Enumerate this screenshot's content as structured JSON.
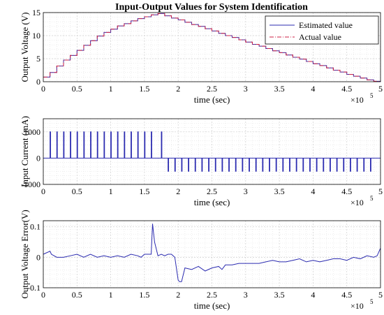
{
  "figure": {
    "title": "Input-Output Values for System Identification"
  },
  "chart_data": [
    {
      "type": "line",
      "ylabel": "Output Voltage (V)",
      "xlabel": "time (sec)",
      "x_exponent": "×10",
      "x_exponent_power": "5",
      "xlim": [
        0,
        5
      ],
      "ylim": [
        0,
        15
      ],
      "xticks": [
        "0",
        "0.5",
        "1",
        "1.5",
        "2",
        "2.5",
        "3",
        "3.5",
        "4",
        "4.5",
        "5"
      ],
      "yticks": [
        "0",
        "5",
        "10",
        "15"
      ],
      "grid": true,
      "legend_position": "top-right",
      "series": [
        {
          "name": "Estimated value",
          "color": "#2b2bb0",
          "style": "solid",
          "x": [
            0,
            0.1,
            0.2,
            0.3,
            0.4,
            0.5,
            0.6,
            0.7,
            0.8,
            0.9,
            1.0,
            1.1,
            1.2,
            1.3,
            1.4,
            1.5,
            1.6,
            1.7,
            1.8,
            1.9,
            2.0,
            2.1,
            2.2,
            2.3,
            2.4,
            2.5,
            2.6,
            2.7,
            2.8,
            2.9,
            3.0,
            3.1,
            3.2,
            3.3,
            3.4,
            3.5,
            3.6,
            3.7,
            3.8,
            3.9,
            4.0,
            4.1,
            4.2,
            4.3,
            4.4,
            4.5,
            4.6,
            4.7,
            4.8,
            4.9,
            5.0
          ],
          "y": [
            1.0,
            2.0,
            3.4,
            4.7,
            5.7,
            6.8,
            7.9,
            8.9,
            9.9,
            10.7,
            11.4,
            12.1,
            12.6,
            13.2,
            13.7,
            14.1,
            14.5,
            14.8,
            14.3,
            13.8,
            13.4,
            12.9,
            12.4,
            12.0,
            11.5,
            11.0,
            10.5,
            10.0,
            9.6,
            9.1,
            8.6,
            8.1,
            7.7,
            7.2,
            6.7,
            6.3,
            5.8,
            5.3,
            4.9,
            4.4,
            3.9,
            3.5,
            3.0,
            2.5,
            2.1,
            1.6,
            1.2,
            0.8,
            0.4,
            0.1,
            0.0
          ]
        },
        {
          "name": "Actual value",
          "color": "#cc2244",
          "style": "dashdot",
          "x": [
            0,
            0.1,
            0.2,
            0.3,
            0.4,
            0.5,
            0.6,
            0.7,
            0.8,
            0.9,
            1.0,
            1.1,
            1.2,
            1.3,
            1.4,
            1.5,
            1.6,
            1.7,
            1.8,
            1.9,
            2.0,
            2.1,
            2.2,
            2.3,
            2.4,
            2.5,
            2.6,
            2.7,
            2.8,
            2.9,
            3.0,
            3.1,
            3.2,
            3.3,
            3.4,
            3.5,
            3.6,
            3.7,
            3.8,
            3.9,
            4.0,
            4.1,
            4.2,
            4.3,
            4.4,
            4.5,
            4.6,
            4.7,
            4.8,
            4.9,
            5.0
          ],
          "y": [
            1.0,
            2.0,
            3.4,
            4.7,
            5.7,
            6.8,
            7.9,
            8.9,
            9.9,
            10.7,
            11.4,
            12.1,
            12.6,
            13.2,
            13.7,
            14.1,
            14.5,
            14.8,
            14.3,
            13.8,
            13.4,
            12.9,
            12.4,
            12.0,
            11.5,
            11.0,
            10.5,
            10.0,
            9.6,
            9.1,
            8.6,
            8.1,
            7.7,
            7.2,
            6.7,
            6.3,
            5.8,
            5.3,
            4.9,
            4.4,
            3.9,
            3.5,
            3.0,
            2.5,
            2.1,
            1.6,
            1.2,
            0.8,
            0.4,
            0.1,
            0.0
          ]
        }
      ]
    },
    {
      "type": "line",
      "ylabel": "Input Current (mA)",
      "xlabel": "time (sec)",
      "x_exponent": "×10",
      "x_exponent_power": "5",
      "xlim": [
        0,
        5
      ],
      "ylim": [
        -1000,
        1500
      ],
      "xticks": [
        "0",
        "0.5",
        "1",
        "1.5",
        "2",
        "2.5",
        "3",
        "3.5",
        "4",
        "4.5",
        "5"
      ],
      "yticks": [
        "-1000",
        "0",
        "1000"
      ],
      "grid": true,
      "series": [
        {
          "color": "#2b2bb0",
          "baseline": 0,
          "pulses": [
            {
              "x": 0.1,
              "y": 1000
            },
            {
              "x": 0.2,
              "y": 1000
            },
            {
              "x": 0.3,
              "y": 1000
            },
            {
              "x": 0.4,
              "y": 1000
            },
            {
              "x": 0.5,
              "y": 1000
            },
            {
              "x": 0.6,
              "y": 1000
            },
            {
              "x": 0.7,
              "y": 1000
            },
            {
              "x": 0.8,
              "y": 1000
            },
            {
              "x": 0.9,
              "y": 1000
            },
            {
              "x": 1.0,
              "y": 1000
            },
            {
              "x": 1.1,
              "y": 1000
            },
            {
              "x": 1.2,
              "y": 1000
            },
            {
              "x": 1.3,
              "y": 1000
            },
            {
              "x": 1.4,
              "y": 1000
            },
            {
              "x": 1.5,
              "y": 1000
            },
            {
              "x": 1.6,
              "y": 1000
            },
            {
              "x": 1.75,
              "y": 1000
            },
            {
              "x": 1.85,
              "y": -500
            },
            {
              "x": 1.95,
              "y": -500
            },
            {
              "x": 2.05,
              "y": -500
            },
            {
              "x": 2.15,
              "y": -500
            },
            {
              "x": 2.25,
              "y": -500
            },
            {
              "x": 2.35,
              "y": -500
            },
            {
              "x": 2.45,
              "y": -500
            },
            {
              "x": 2.55,
              "y": -500
            },
            {
              "x": 2.65,
              "y": -500
            },
            {
              "x": 2.75,
              "y": -500
            },
            {
              "x": 2.85,
              "y": -500
            },
            {
              "x": 2.95,
              "y": -500
            },
            {
              "x": 3.05,
              "y": -500
            },
            {
              "x": 3.15,
              "y": -500
            },
            {
              "x": 3.25,
              "y": -500
            },
            {
              "x": 3.35,
              "y": -500
            },
            {
              "x": 3.45,
              "y": -500
            },
            {
              "x": 3.55,
              "y": -500
            },
            {
              "x": 3.65,
              "y": -500
            },
            {
              "x": 3.75,
              "y": -500
            },
            {
              "x": 3.85,
              "y": -500
            },
            {
              "x": 3.95,
              "y": -500
            },
            {
              "x": 4.05,
              "y": -500
            },
            {
              "x": 4.15,
              "y": -500
            },
            {
              "x": 4.25,
              "y": -500
            },
            {
              "x": 4.35,
              "y": -500
            },
            {
              "x": 4.45,
              "y": -500
            },
            {
              "x": 4.55,
              "y": -500
            },
            {
              "x": 4.65,
              "y": -500
            },
            {
              "x": 4.75,
              "y": -500
            },
            {
              "x": 4.85,
              "y": -500
            }
          ]
        }
      ]
    },
    {
      "type": "line",
      "ylabel": "Output Voltage Error(V)",
      "xlabel": "time (sec)",
      "x_exponent": "×10",
      "x_exponent_power": "5",
      "xlim": [
        0,
        5
      ],
      "ylim": [
        -0.1,
        0.12
      ],
      "xticks": [
        "0",
        "0.5",
        "1",
        "1.5",
        "2",
        "2.5",
        "3",
        "3.5",
        "4",
        "4.5",
        "5"
      ],
      "yticks": [
        "-0.1",
        "0",
        "0.1"
      ],
      "yticks_values": [
        -0.1,
        0,
        0.1
      ],
      "grid": true,
      "series": [
        {
          "color": "#2b2bb0",
          "x": [
            0,
            0.1,
            0.12,
            0.2,
            0.3,
            0.4,
            0.5,
            0.6,
            0.7,
            0.8,
            0.9,
            1.0,
            1.1,
            1.2,
            1.3,
            1.4,
            1.45,
            1.5,
            1.55,
            1.6,
            1.62,
            1.65,
            1.7,
            1.75,
            1.8,
            1.85,
            1.9,
            1.95,
            2.0,
            2.02,
            2.05,
            2.1,
            2.2,
            2.3,
            2.4,
            2.5,
            2.6,
            2.65,
            2.7,
            2.8,
            2.9,
            3.0,
            3.1,
            3.2,
            3.3,
            3.4,
            3.5,
            3.6,
            3.7,
            3.8,
            3.9,
            4.0,
            4.1,
            4.2,
            4.3,
            4.4,
            4.5,
            4.6,
            4.7,
            4.8,
            4.9,
            4.95,
            5.0
          ],
          "y": [
            0.01,
            0.02,
            0.01,
            0.0,
            0.0,
            0.005,
            0.01,
            0.0,
            0.01,
            0.0,
            0.005,
            0.0,
            0.005,
            0.0,
            0.01,
            0.005,
            0.0,
            0.01,
            0.01,
            0.01,
            0.11,
            0.05,
            0.005,
            0.01,
            0.005,
            0.01,
            0.01,
            0.0,
            -0.075,
            -0.08,
            -0.08,
            -0.035,
            -0.04,
            -0.03,
            -0.045,
            -0.035,
            -0.03,
            -0.04,
            -0.025,
            -0.025,
            -0.02,
            -0.02,
            -0.02,
            -0.02,
            -0.015,
            -0.01,
            -0.015,
            -0.015,
            -0.01,
            -0.005,
            -0.015,
            -0.01,
            -0.015,
            -0.01,
            -0.005,
            -0.005,
            -0.01,
            0.0,
            -0.005,
            0.005,
            0.0,
            0.005,
            0.03
          ]
        }
      ]
    }
  ]
}
